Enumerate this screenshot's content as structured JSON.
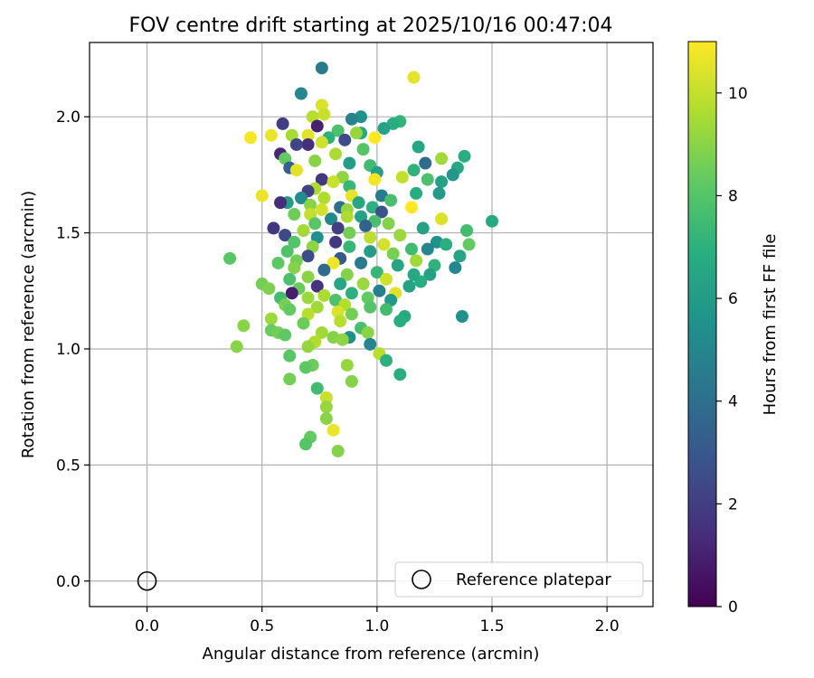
{
  "chart_data": {
    "type": "scatter",
    "title": "FOV centre drift starting at 2025/10/16 00:47:04",
    "xlabel": "Angular distance from reference (arcmin)",
    "ylabel": "Rotation from reference (arcmin)",
    "xlim": [
      -0.25,
      2.2
    ],
    "ylim": [
      -0.11,
      2.32
    ],
    "xticks": [
      0.0,
      0.5,
      1.0,
      1.5,
      2.0
    ],
    "yticks": [
      0.0,
      0.5,
      1.0,
      1.5,
      2.0
    ],
    "xtick_labels": [
      "0.0",
      "0.5",
      "1.0",
      "1.5",
      "2.0"
    ],
    "ytick_labels": [
      "0.0",
      "0.5",
      "1.0",
      "1.5",
      "2.0"
    ],
    "grid": true,
    "colorbar": {
      "label": "Hours from first FF file",
      "min": 0,
      "max": 11,
      "ticks": [
        0,
        2,
        4,
        6,
        8,
        10
      ],
      "tick_labels": [
        "0",
        "2",
        "4",
        "6",
        "8",
        "10"
      ],
      "colormap": "viridis"
    },
    "reference": {
      "x": 0.0,
      "y": 0.0,
      "label": "Reference platepar"
    },
    "legend_position": "lower-right",
    "points": [
      [
        0.76,
        2.21,
        4.5
      ],
      [
        1.16,
        2.17,
        10.6
      ],
      [
        0.67,
        2.1,
        5.0
      ],
      [
        0.76,
        2.05,
        10.4
      ],
      [
        0.77,
        2.01,
        10.1
      ],
      [
        0.72,
        2.0,
        9.8
      ],
      [
        0.93,
        2.0,
        5.5
      ],
      [
        0.89,
        1.99,
        4.9
      ],
      [
        1.1,
        1.98,
        7.2
      ],
      [
        1.07,
        1.97,
        6.8
      ],
      [
        0.59,
        1.97,
        2.0
      ],
      [
        0.74,
        1.96,
        1.0
      ],
      [
        1.03,
        1.95,
        6.3
      ],
      [
        0.83,
        1.94,
        7.8
      ],
      [
        0.93,
        1.93,
        6.5
      ],
      [
        0.91,
        1.93,
        9.2
      ],
      [
        0.7,
        1.92,
        10.5
      ],
      [
        0.54,
        1.92,
        10.7
      ],
      [
        0.45,
        1.91,
        10.9
      ],
      [
        0.63,
        1.92,
        9.5
      ],
      [
        0.79,
        1.91,
        7.0
      ],
      [
        0.86,
        1.9,
        2.5
      ],
      [
        0.99,
        1.91,
        11.0
      ],
      [
        0.76,
        1.89,
        10.2
      ],
      [
        0.7,
        1.88,
        1.5
      ],
      [
        0.65,
        1.88,
        2.3
      ],
      [
        1.18,
        1.87,
        6.5
      ],
      [
        0.94,
        1.86,
        8.0
      ],
      [
        0.58,
        1.84,
        1.2
      ],
      [
        0.82,
        1.84,
        9.6
      ],
      [
        1.38,
        1.83,
        6.9
      ],
      [
        0.6,
        1.82,
        8.3
      ],
      [
        1.28,
        1.82,
        9.4
      ],
      [
        0.73,
        1.81,
        9.0
      ],
      [
        0.88,
        1.8,
        6.0
      ],
      [
        1.21,
        1.8,
        3.8
      ],
      [
        0.97,
        1.79,
        7.5
      ],
      [
        0.62,
        1.78,
        3.3
      ],
      [
        1.35,
        1.78,
        6.6
      ],
      [
        1.16,
        1.77,
        7.1
      ],
      [
        0.65,
        1.77,
        10.5
      ],
      [
        1.0,
        1.76,
        6.2
      ],
      [
        1.33,
        1.75,
        5.8
      ],
      [
        0.85,
        1.74,
        9.1
      ],
      [
        1.11,
        1.74,
        10.0
      ],
      [
        0.76,
        1.73,
        1.8
      ],
      [
        0.99,
        1.73,
        10.8
      ],
      [
        1.22,
        1.73,
        7.8
      ],
      [
        1.28,
        1.72,
        6.3
      ],
      [
        0.81,
        1.72,
        10.1
      ],
      [
        0.88,
        1.7,
        7.3
      ],
      [
        0.73,
        1.69,
        9.6
      ],
      [
        0.7,
        1.68,
        2.1
      ],
      [
        1.17,
        1.67,
        6.8
      ],
      [
        1.27,
        1.67,
        5.9
      ],
      [
        1.02,
        1.66,
        4.5
      ],
      [
        0.89,
        1.66,
        10.6
      ],
      [
        0.5,
        1.66,
        10.7
      ],
      [
        0.67,
        1.65,
        5.3
      ],
      [
        0.77,
        1.65,
        9.7
      ],
      [
        1.06,
        1.64,
        7.7
      ],
      [
        0.92,
        1.63,
        6.5
      ],
      [
        0.61,
        1.63,
        6.0
      ],
      [
        0.58,
        1.63,
        1.4
      ],
      [
        0.71,
        1.62,
        9.0
      ],
      [
        0.98,
        1.61,
        7.0
      ],
      [
        0.84,
        1.61,
        4.0
      ],
      [
        1.15,
        1.61,
        11.0
      ],
      [
        0.76,
        1.6,
        10.3
      ],
      [
        0.87,
        1.6,
        9.2
      ],
      [
        1.02,
        1.59,
        2.8
      ],
      [
        0.71,
        1.58,
        10.0
      ],
      [
        0.64,
        1.58,
        8.5
      ],
      [
        0.93,
        1.57,
        6.3
      ],
      [
        0.87,
        1.57,
        9.6
      ],
      [
        0.8,
        1.56,
        5.2
      ],
      [
        1.28,
        1.56,
        10.4
      ],
      [
        0.99,
        1.55,
        7.7
      ],
      [
        1.5,
        1.55,
        6.7
      ],
      [
        0.73,
        1.54,
        8.1
      ],
      [
        1.05,
        1.54,
        8.9
      ],
      [
        0.95,
        1.53,
        3.5
      ],
      [
        0.83,
        1.52,
        2.0
      ],
      [
        0.55,
        1.52,
        1.8
      ],
      [
        1.2,
        1.52,
        6.3
      ],
      [
        0.68,
        1.51,
        9.4
      ],
      [
        1.39,
        1.51,
        7.6
      ],
      [
        0.88,
        1.5,
        8.6
      ],
      [
        1.1,
        1.49,
        9.3
      ],
      [
        0.6,
        1.49,
        2.4
      ],
      [
        0.74,
        1.48,
        5.5
      ],
      [
        0.97,
        1.48,
        9.9
      ],
      [
        1.26,
        1.46,
        5.5
      ],
      [
        0.82,
        1.46,
        1.7
      ],
      [
        0.64,
        1.46,
        8.0
      ],
      [
        1.03,
        1.45,
        10.3
      ],
      [
        1.3,
        1.45,
        6.9
      ],
      [
        1.4,
        1.45,
        8.3
      ],
      [
        0.88,
        1.44,
        7.3
      ],
      [
        0.72,
        1.44,
        9.1
      ],
      [
        1.22,
        1.43,
        5.0
      ],
      [
        1.15,
        1.43,
        7.5
      ],
      [
        0.61,
        1.42,
        7.9
      ],
      [
        0.97,
        1.42,
        6.0
      ],
      [
        1.07,
        1.41,
        8.7
      ],
      [
        0.7,
        1.4,
        2.6
      ],
      [
        1.36,
        1.4,
        6.4
      ],
      [
        0.84,
        1.39,
        3.1
      ],
      [
        0.65,
        1.38,
        8.6
      ],
      [
        0.36,
        1.39,
        8.1
      ],
      [
        1.17,
        1.38,
        9.4
      ],
      [
        0.81,
        1.37,
        10.8
      ],
      [
        0.93,
        1.37,
        4.5
      ],
      [
        1.25,
        1.36,
        7.1
      ],
      [
        0.57,
        1.37,
        8.2
      ],
      [
        1.09,
        1.36,
        6.5
      ],
      [
        1.34,
        1.35,
        5.1
      ],
      [
        0.64,
        1.35,
        8.9
      ],
      [
        0.77,
        1.34,
        3.8
      ],
      [
        1.0,
        1.33,
        7.3
      ],
      [
        1.16,
        1.32,
        6.6
      ],
      [
        0.87,
        1.32,
        8.9
      ],
      [
        1.23,
        1.32,
        6.2
      ],
      [
        0.7,
        1.31,
        9.0
      ],
      [
        1.04,
        1.3,
        10.2
      ],
      [
        0.62,
        1.3,
        7.8
      ],
      [
        1.19,
        1.29,
        6.8
      ],
      [
        0.5,
        1.28,
        8.6
      ],
      [
        0.84,
        1.28,
        6.5
      ],
      [
        0.94,
        1.28,
        9.3
      ],
      [
        0.74,
        1.27,
        1.6
      ],
      [
        1.14,
        1.27,
        6.3
      ],
      [
        0.66,
        1.26,
        8.4
      ],
      [
        0.53,
        1.26,
        8.8
      ],
      [
        1.01,
        1.25,
        4.8
      ],
      [
        1.08,
        1.24,
        10.5
      ],
      [
        0.63,
        1.24,
        0.9
      ],
      [
        0.89,
        1.24,
        7.0
      ],
      [
        0.77,
        1.23,
        9.6
      ],
      [
        0.58,
        1.22,
        7.6
      ],
      [
        0.96,
        1.22,
        8.3
      ],
      [
        0.7,
        1.22,
        9.3
      ],
      [
        1.06,
        1.21,
        5.9
      ],
      [
        0.82,
        1.21,
        7.8
      ],
      [
        0.6,
        1.19,
        8.7
      ],
      [
        0.86,
        1.19,
        9.7
      ],
      [
        0.74,
        1.18,
        9.4
      ],
      [
        0.97,
        1.18,
        8.0
      ],
      [
        1.04,
        1.17,
        7.6
      ],
      [
        0.62,
        1.17,
        8.3
      ],
      [
        0.83,
        1.16,
        10.4
      ],
      [
        0.89,
        1.15,
        8.6
      ],
      [
        0.7,
        1.15,
        9.8
      ],
      [
        1.12,
        1.14,
        6.7
      ],
      [
        1.37,
        1.14,
        5.5
      ],
      [
        0.54,
        1.13,
        9.3
      ],
      [
        1.1,
        1.12,
        6.9
      ],
      [
        0.84,
        1.12,
        9.8
      ],
      [
        0.68,
        1.11,
        8.5
      ],
      [
        0.42,
        1.1,
        9.0
      ],
      [
        0.93,
        1.09,
        7.7
      ],
      [
        0.54,
        1.08,
        8.4
      ],
      [
        0.57,
        1.07,
        8.6
      ],
      [
        0.76,
        1.07,
        9.4
      ],
      [
        0.96,
        1.07,
        9.0
      ],
      [
        0.6,
        1.06,
        8.2
      ],
      [
        0.81,
        1.05,
        8.9
      ],
      [
        0.88,
        1.05,
        5.4
      ],
      [
        0.85,
        1.04,
        9.1
      ],
      [
        0.73,
        1.03,
        9.7
      ],
      [
        0.97,
        1.02,
        5.0
      ],
      [
        0.7,
        1.01,
        9.2
      ],
      [
        0.39,
        1.01,
        9.0
      ],
      [
        1.01,
        0.98,
        9.8
      ],
      [
        0.62,
        0.97,
        8.1
      ],
      [
        1.04,
        0.95,
        7.0
      ],
      [
        0.72,
        0.93,
        8.5
      ],
      [
        0.69,
        0.92,
        8.2
      ],
      [
        0.87,
        0.93,
        9.2
      ],
      [
        1.1,
        0.89,
        6.9
      ],
      [
        0.62,
        0.87,
        8.6
      ],
      [
        0.89,
        0.86,
        8.9
      ],
      [
        0.74,
        0.83,
        7.5
      ],
      [
        0.78,
        0.79,
        10.1
      ],
      [
        0.78,
        0.75,
        9.2
      ],
      [
        0.78,
        0.7,
        9.0
      ],
      [
        0.81,
        0.65,
        10.7
      ],
      [
        0.71,
        0.62,
        8.3
      ],
      [
        0.69,
        0.59,
        8.0
      ],
      [
        0.83,
        0.56,
        8.9
      ]
    ]
  }
}
